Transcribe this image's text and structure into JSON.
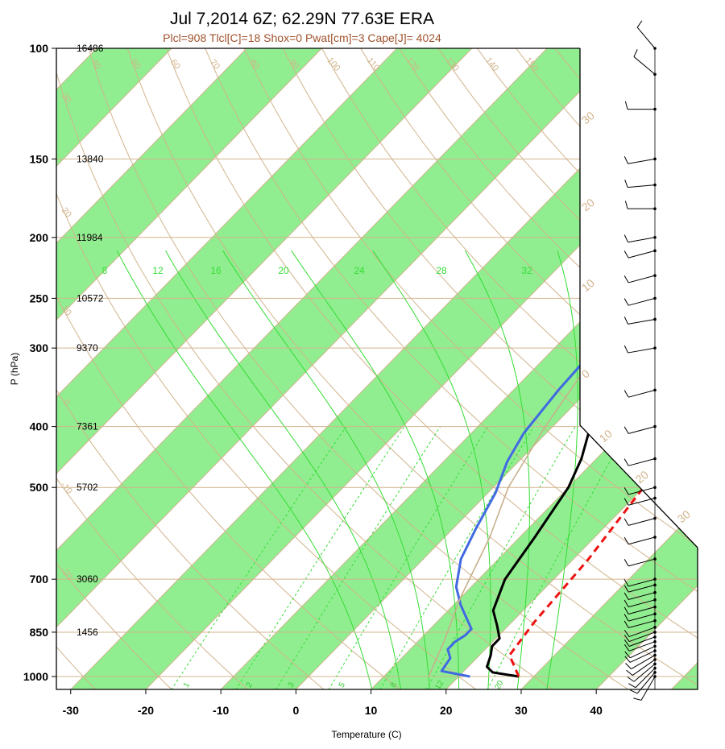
{
  "chart_data": {
    "type": "line",
    "title": "Jul 7,2014 6Z; 62.29N 77.63E ERA",
    "subtitle": "Plcl=908 Tlcl[C]=18 Shox=0 Pwat[cm]=3 Cape[J]= 4024",
    "xlabel": "Temperature (C)",
    "ylabel": "P (hPa)",
    "xlim": [
      -34,
      52
    ],
    "ylim": [
      1020,
      100
    ],
    "y_scale": "log",
    "x_ticks": [
      "-30",
      "-20",
      "-10",
      "0",
      "10",
      "20",
      "30",
      "40"
    ],
    "pressure_ticks": [
      {
        "p": 100,
        "label": "100",
        "height": "16486"
      },
      {
        "p": 150,
        "label": "150",
        "height": "13840"
      },
      {
        "p": 200,
        "label": "200",
        "height": "11984"
      },
      {
        "p": 250,
        "label": "250",
        "height": "10572"
      },
      {
        "p": 300,
        "label": "300",
        "height": "9370"
      },
      {
        "p": 400,
        "label": "400",
        "height": "7361"
      },
      {
        "p": 500,
        "label": "500",
        "height": "5702"
      },
      {
        "p": 700,
        "label": "700",
        "height": "3060"
      },
      {
        "p": 850,
        "label": "850",
        "height": "1456"
      },
      {
        "p": 1000,
        "label": "1000",
        "height": ""
      }
    ],
    "dry_adiabat_labels": [
      "-30",
      "-20",
      "-10",
      "0",
      "10",
      "20",
      "30",
      "40",
      "50",
      "60",
      "70",
      "80",
      "90",
      "100",
      "110",
      "120",
      "130",
      "140",
      "150",
      "160"
    ],
    "temp_band_labels": [
      "30",
      "20",
      "10",
      "0",
      "10",
      "20",
      "30"
    ],
    "moist_adiabat_labels": [
      "8",
      "12",
      "16",
      "20",
      "24",
      "28",
      "32"
    ],
    "mixing_ratio_labels": [
      "1",
      "2",
      "3",
      "5",
      "8",
      "12",
      "20"
    ],
    "series": [
      {
        "name": "",
        "color": "#000000",
        "style": "solid",
        "points": [
          [
            28,
            1000
          ],
          [
            24,
            985
          ],
          [
            22.5,
            965
          ],
          [
            21.5,
            925
          ],
          [
            20.5,
            895
          ],
          [
            20.5,
            870
          ],
          [
            18.5,
            830
          ],
          [
            16,
            785
          ],
          [
            13.5,
            700
          ],
          [
            12,
            600
          ],
          [
            10,
            500
          ],
          [
            8,
            450
          ],
          [
            5,
            400
          ],
          [
            2,
            350
          ],
          [
            -1,
            300
          ],
          [
            -4,
            265
          ],
          [
            -7,
            230
          ],
          [
            -4,
            200
          ],
          [
            6,
            175
          ],
          [
            12,
            150
          ],
          [
            17,
            125
          ],
          [
            20,
            112
          ],
          [
            24,
            100
          ]
        ]
      },
      {
        "name": "",
        "color": "#4169e1",
        "style": "solid",
        "points": [
          [
            21.5,
            1000
          ],
          [
            17,
            980
          ],
          [
            16.5,
            935
          ],
          [
            15,
            905
          ],
          [
            15,
            880
          ],
          [
            15.5,
            860
          ],
          [
            15.5,
            840
          ],
          [
            11,
            770
          ],
          [
            8,
            720
          ],
          [
            5,
            650
          ],
          [
            3,
            580
          ],
          [
            1,
            510
          ],
          [
            -1.5,
            455
          ],
          [
            -3,
            410
          ],
          [
            -4,
            350
          ],
          [
            -4.5,
            300
          ],
          [
            -6.5,
            255
          ],
          [
            -7.5,
            225
          ],
          [
            -8,
            200
          ],
          [
            -13,
            175
          ],
          [
            -18,
            150
          ],
          [
            -15,
            130
          ],
          [
            -11,
            110
          ],
          [
            -8,
            100
          ]
        ]
      },
      {
        "name": "",
        "color": "#ee1111",
        "style": "dashed",
        "points": [
          [
            28,
            1000
          ],
          [
            24,
            925
          ],
          [
            23,
            820
          ],
          [
            22,
            650
          ],
          [
            20,
            500
          ],
          [
            17,
            400
          ],
          [
            12,
            300
          ],
          [
            5,
            240
          ],
          [
            -1,
            200
          ]
        ]
      },
      {
        "name": "",
        "color": "#c8b08c",
        "style": "solid",
        "points": [
          [
            16,
            1000
          ],
          [
            13.5,
            880
          ],
          [
            10,
            750
          ],
          [
            6,
            600
          ],
          [
            2,
            500
          ],
          [
            -1,
            400
          ],
          [
            -4,
            300
          ],
          [
            -7.5,
            230
          ]
        ]
      }
    ],
    "winds": [
      {
        "p": 1000,
        "dir": 210,
        "kt": 10
      },
      {
        "p": 985,
        "dir": 220,
        "kt": 10
      },
      {
        "p": 970,
        "dir": 225,
        "kt": 10
      },
      {
        "p": 955,
        "dir": 230,
        "kt": 10
      },
      {
        "p": 940,
        "dir": 235,
        "kt": 10
      },
      {
        "p": 925,
        "dir": 240,
        "kt": 10
      },
      {
        "p": 910,
        "dir": 245,
        "kt": 10
      },
      {
        "p": 895,
        "dir": 245,
        "kt": 10
      },
      {
        "p": 880,
        "dir": 250,
        "kt": 10
      },
      {
        "p": 865,
        "dir": 250,
        "kt": 10
      },
      {
        "p": 850,
        "dir": 250,
        "kt": 10
      },
      {
        "p": 835,
        "dir": 250,
        "kt": 10
      },
      {
        "p": 815,
        "dir": 255,
        "kt": 10
      },
      {
        "p": 795,
        "dir": 255,
        "kt": 10
      },
      {
        "p": 775,
        "dir": 255,
        "kt": 10
      },
      {
        "p": 755,
        "dir": 255,
        "kt": 10
      },
      {
        "p": 735,
        "dir": 255,
        "kt": 10
      },
      {
        "p": 715,
        "dir": 255,
        "kt": 10
      },
      {
        "p": 700,
        "dir": 255,
        "kt": 10
      },
      {
        "p": 650,
        "dir": 255,
        "kt": 10
      },
      {
        "p": 600,
        "dir": 255,
        "kt": 10
      },
      {
        "p": 560,
        "dir": 255,
        "kt": 10
      },
      {
        "p": 520,
        "dir": 255,
        "kt": 10
      },
      {
        "p": 500,
        "dir": 255,
        "kt": 10
      },
      {
        "p": 450,
        "dir": 255,
        "kt": 10
      },
      {
        "p": 400,
        "dir": 255,
        "kt": 10
      },
      {
        "p": 350,
        "dir": 255,
        "kt": 10
      },
      {
        "p": 300,
        "dir": 260,
        "kt": 10
      },
      {
        "p": 270,
        "dir": 260,
        "kt": 10
      },
      {
        "p": 250,
        "dir": 255,
        "kt": 10
      },
      {
        "p": 230,
        "dir": 255,
        "kt": 10
      },
      {
        "p": 210,
        "dir": 255,
        "kt": 10
      },
      {
        "p": 200,
        "dir": 260,
        "kt": 10
      },
      {
        "p": 180,
        "dir": 270,
        "kt": 10
      },
      {
        "p": 165,
        "dir": 265,
        "kt": 10
      },
      {
        "p": 150,
        "dir": 260,
        "kt": 10
      },
      {
        "p": 125,
        "dir": 270,
        "kt": 10
      },
      {
        "p": 110,
        "dir": 310,
        "kt": 10
      },
      {
        "p": 100,
        "dir": 320,
        "kt": 10
      }
    ],
    "colors": {
      "band": "#90ee90",
      "isotherm": "#d2b48c",
      "dry_adiabat": "#d2b48c",
      "moist_adiabat": "#33dd33",
      "mixing_ratio": "#33dd33"
    }
  }
}
